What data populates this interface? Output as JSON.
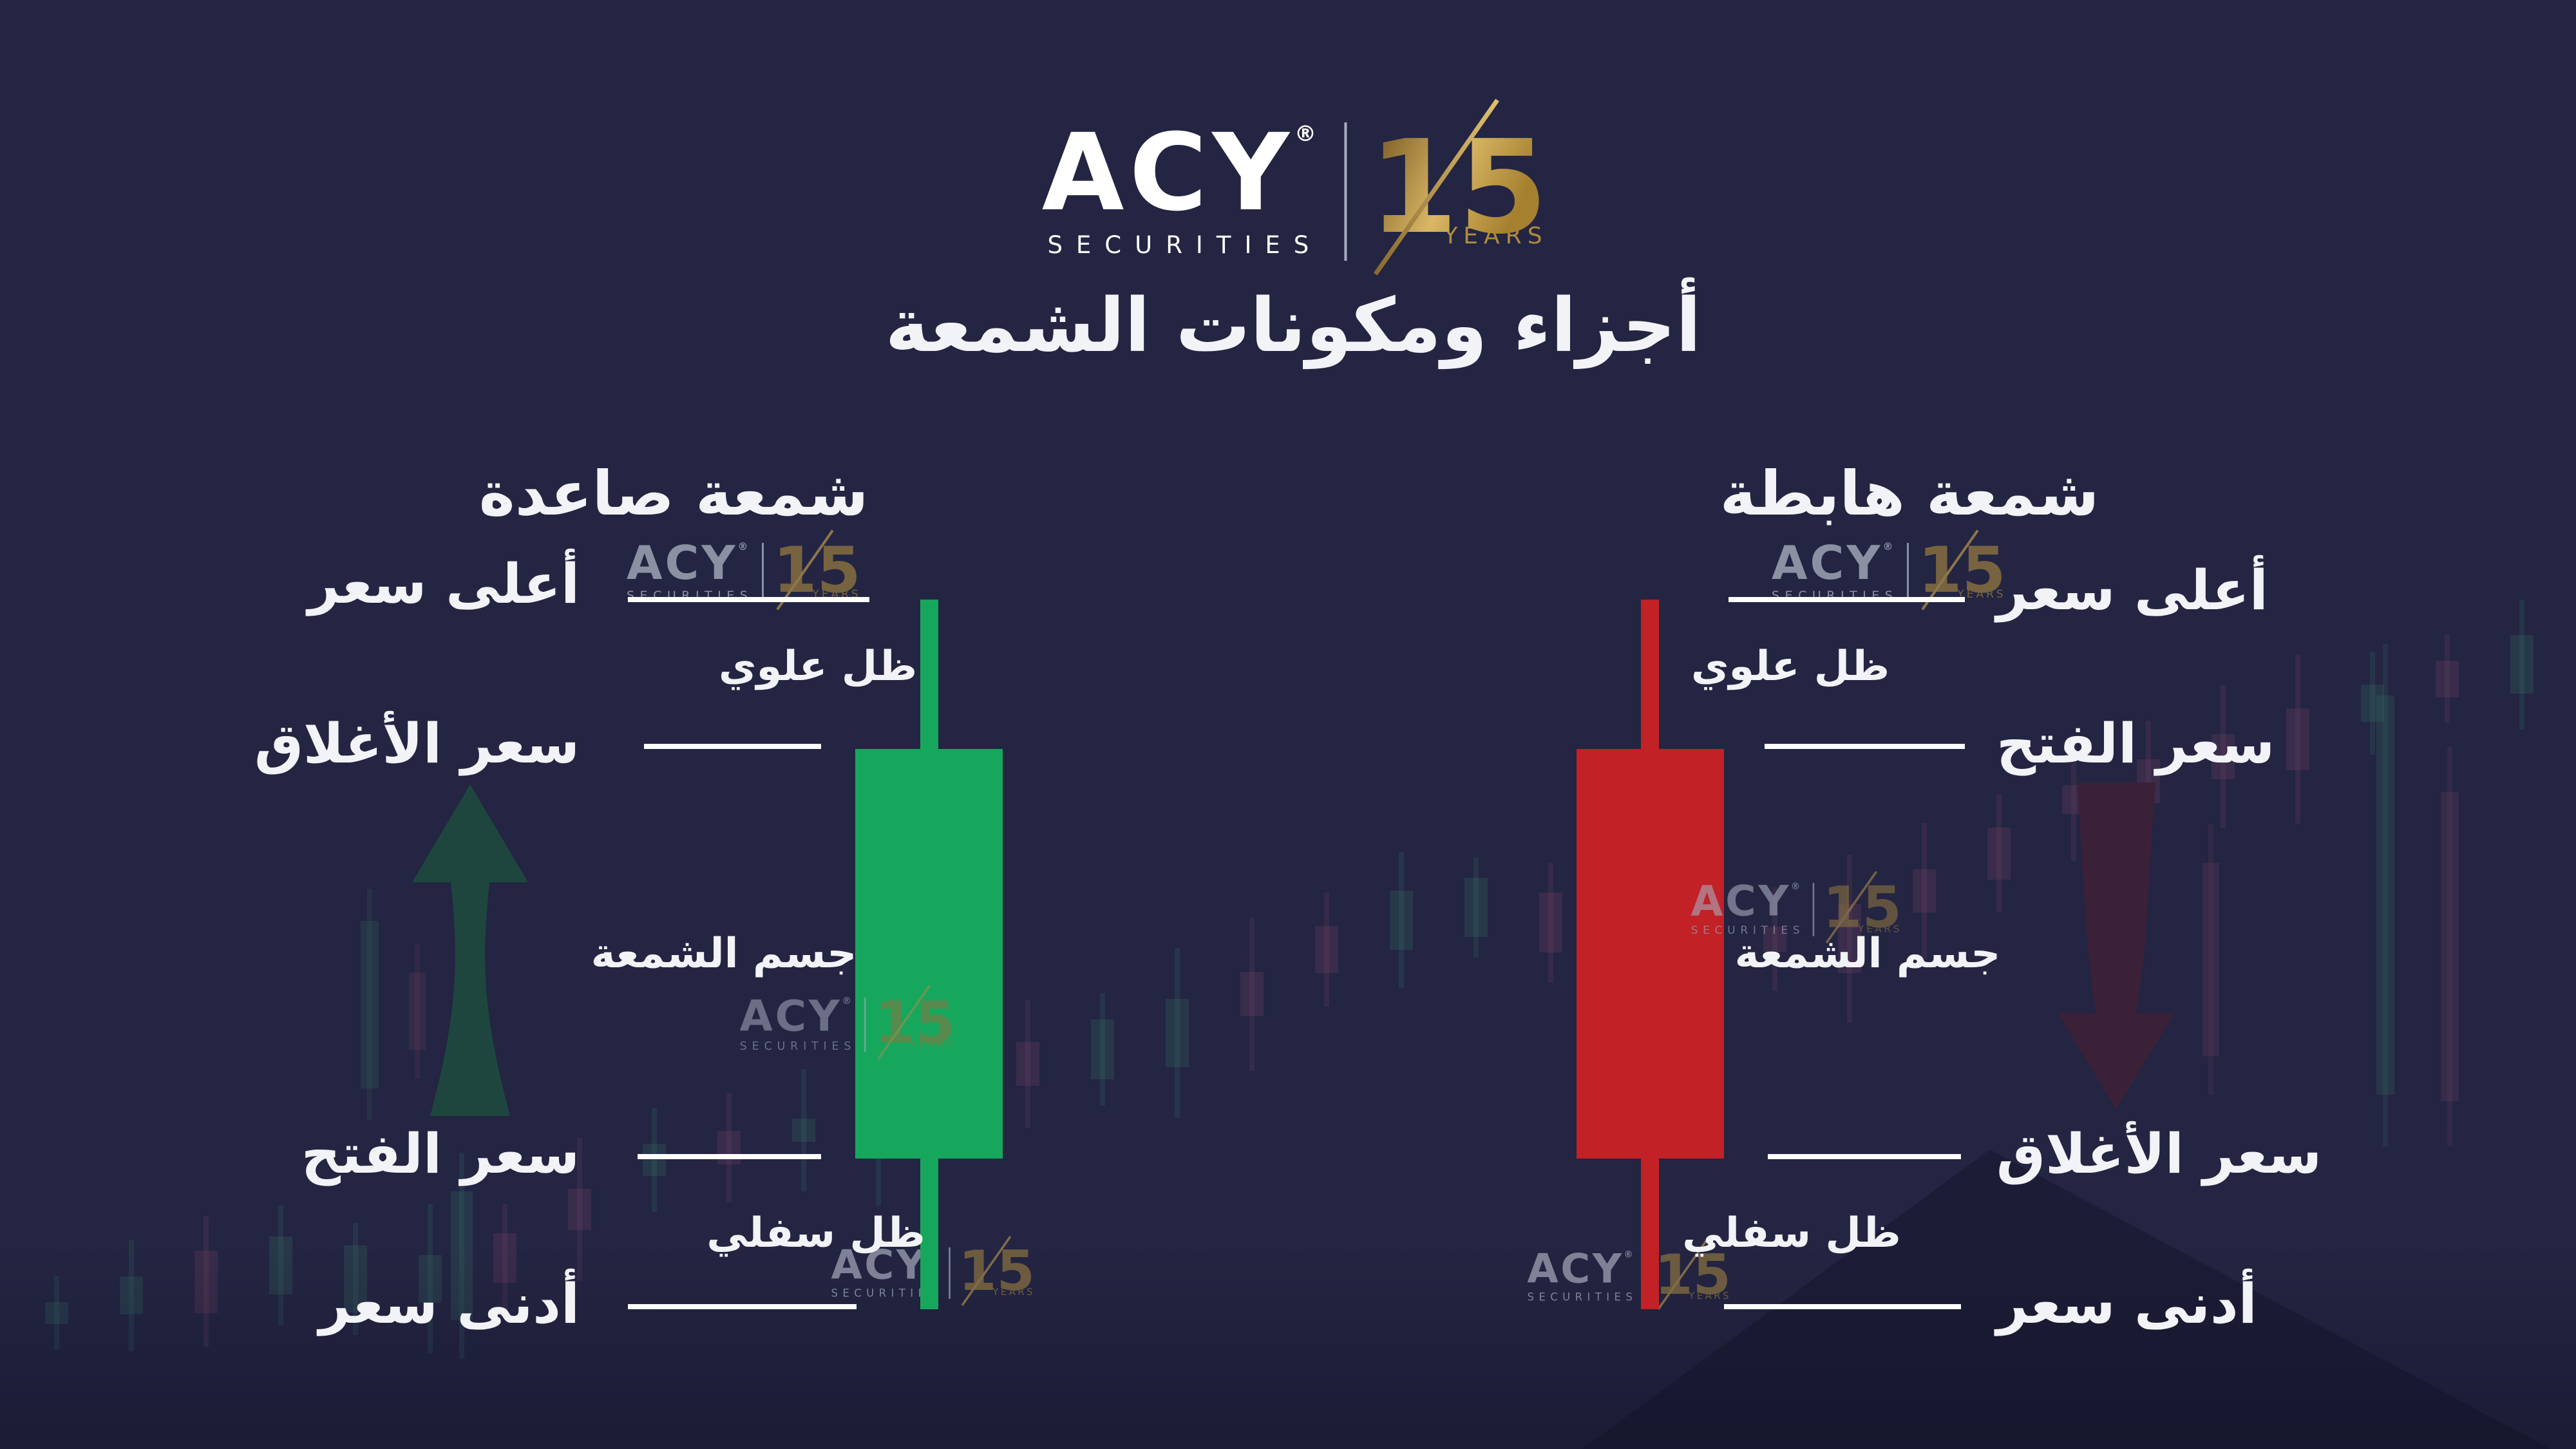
{
  "brand": {
    "name": "ACY",
    "registered": "®",
    "securities": "SECURITIES",
    "anniversary_number": "15",
    "anniversary_label": "YEARS"
  },
  "title": "أجزاء ومكونات الشمعة",
  "bullish": {
    "heading": "شمعة صاعدة",
    "high": "أعلى سعر",
    "upper_shadow": "ظل علوي",
    "close": "سعر الأغلاق",
    "body": "جسم الشمعة",
    "open": "سعر الفتح",
    "lower_shadow": "ظل سفلي",
    "low": "أدنى سعر"
  },
  "bearish": {
    "heading": "شمعة هابطة",
    "high": "أعلى سعر",
    "upper_shadow": "ظل علوي",
    "open": "سعر الفتح",
    "body": "جسم الشمعة",
    "close": "سعر الأغلاق",
    "lower_shadow": "ظل سفلي",
    "low": "أدنى سعر"
  },
  "colors": {
    "background": "#232542",
    "bullish_green": "#16A75C",
    "bearish_red": "#C22126",
    "gold": "#AE8B3E",
    "text": "#F2F3F7"
  }
}
